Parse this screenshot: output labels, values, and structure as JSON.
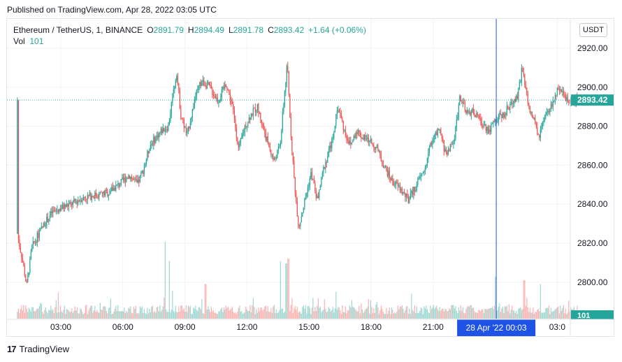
{
  "header": {
    "published": "Published on TradingView.com, Apr 28, 2022 03:05 UTC"
  },
  "legend": {
    "symbol": "Ethereum / TetherUS, 1, BINANCE",
    "o_label": "O",
    "o_value": "2891.79",
    "h_label": "H",
    "h_value": "2894.49",
    "l_label": "L",
    "l_value": "2891.78",
    "c_label": "C",
    "c_value": "2893.42",
    "change": "+1.64 (+0.06%)",
    "vol_label": "Vol",
    "vol_value": "101"
  },
  "price_axis": {
    "currency": "USDT",
    "last_price_label": "2893.42",
    "volume_label": "101"
  },
  "crosshair": {
    "label": "28 Apr '22   00:03"
  },
  "footer": {
    "brand": "TradingView",
    "logo_text": "17"
  },
  "colors": {
    "up": "#26a69a",
    "down": "#ef5350",
    "crosshair": "#1e53e5",
    "last_price_line": "#26a69a",
    "grid": "#f0f3fa"
  },
  "chart_data": {
    "type": "candlestick",
    "title": "Ethereum / TetherUS, 1, BINANCE",
    "xlabel": "",
    "ylabel": "",
    "ylim": [
      2792,
      2925
    ],
    "yticks": [
      "2920.00",
      "2900.00",
      "2880.00",
      "2860.00",
      "2840.00",
      "2820.00",
      "2800.00"
    ],
    "ytick_values": [
      2920,
      2900,
      2880,
      2860,
      2840,
      2820,
      2800
    ],
    "xticks": [
      "03:00",
      "06:00",
      "09:00",
      "12:00",
      "15:00",
      "18:00",
      "21:00",
      "03:0"
    ],
    "xtick_hours": [
      3,
      6,
      9,
      12,
      15,
      18,
      21,
      27
    ],
    "x_start_hour": 0.9,
    "x_end_hour": 28.0,
    "crosshair_hour": 24.05,
    "last_price": 2893.42,
    "grid": true,
    "series_anchors": [
      [
        0.9,
        2825
      ],
      [
        1.2,
        2808
      ],
      [
        1.35,
        2798
      ],
      [
        1.6,
        2818
      ],
      [
        2.2,
        2830
      ],
      [
        2.6,
        2836
      ],
      [
        3.0,
        2838
      ],
      [
        3.5,
        2840
      ],
      [
        4.0,
        2843
      ],
      [
        4.4,
        2844
      ],
      [
        4.8,
        2845
      ],
      [
        5.3,
        2846
      ],
      [
        5.8,
        2850
      ],
      [
        6.3,
        2855
      ],
      [
        6.7,
        2850
      ],
      [
        7.0,
        2858
      ],
      [
        7.3,
        2870
      ],
      [
        7.8,
        2877
      ],
      [
        8.2,
        2880
      ],
      [
        8.4,
        2895
      ],
      [
        8.6,
        2908
      ],
      [
        8.8,
        2886
      ],
      [
        9.1,
        2875
      ],
      [
        9.5,
        2895
      ],
      [
        9.8,
        2903
      ],
      [
        10.2,
        2900
      ],
      [
        10.6,
        2893
      ],
      [
        11.0,
        2902
      ],
      [
        11.3,
        2890
      ],
      [
        11.6,
        2868
      ],
      [
        11.9,
        2880
      ],
      [
        12.2,
        2886
      ],
      [
        12.5,
        2890
      ],
      [
        12.9,
        2875
      ],
      [
        13.3,
        2862
      ],
      [
        13.6,
        2870
      ],
      [
        13.8,
        2895
      ],
      [
        13.95,
        2912
      ],
      [
        14.1,
        2880
      ],
      [
        14.3,
        2850
      ],
      [
        14.5,
        2828
      ],
      [
        14.8,
        2842
      ],
      [
        15.1,
        2856
      ],
      [
        15.4,
        2842
      ],
      [
        15.7,
        2858
      ],
      [
        16.1,
        2872
      ],
      [
        16.4,
        2890
      ],
      [
        16.7,
        2878
      ],
      [
        17.0,
        2870
      ],
      [
        17.3,
        2878
      ],
      [
        17.6,
        2874
      ],
      [
        18.0,
        2872
      ],
      [
        18.3,
        2868
      ],
      [
        18.6,
        2860
      ],
      [
        19.0,
        2852
      ],
      [
        19.4,
        2848
      ],
      [
        19.8,
        2842
      ],
      [
        20.2,
        2850
      ],
      [
        20.6,
        2858
      ],
      [
        20.9,
        2872
      ],
      [
        21.3,
        2878
      ],
      [
        21.6,
        2866
      ],
      [
        22.0,
        2872
      ],
      [
        22.3,
        2896
      ],
      [
        22.6,
        2886
      ],
      [
        22.9,
        2888
      ],
      [
        23.3,
        2882
      ],
      [
        23.7,
        2878
      ],
      [
        24.1,
        2884
      ],
      [
        24.4,
        2886
      ],
      [
        24.8,
        2892
      ],
      [
        25.1,
        2896
      ],
      [
        25.3,
        2910
      ],
      [
        25.6,
        2890
      ],
      [
        25.9,
        2882
      ],
      [
        26.1,
        2874
      ],
      [
        26.4,
        2884
      ],
      [
        26.7,
        2890
      ],
      [
        27.0,
        2898
      ],
      [
        27.3,
        2896
      ],
      [
        27.6,
        2893.4
      ]
    ],
    "volume_max_label": "101",
    "volume_spikes": [
      [
        8.05,
        1.0
      ],
      [
        8.25,
        0.75
      ],
      [
        10.0,
        0.45
      ],
      [
        13.6,
        0.75
      ],
      [
        13.9,
        0.72
      ],
      [
        14.0,
        0.78
      ],
      [
        16.3,
        0.35
      ],
      [
        24.0,
        0.55
      ],
      [
        25.4,
        0.5
      ],
      [
        26.2,
        0.45
      ]
    ]
  }
}
